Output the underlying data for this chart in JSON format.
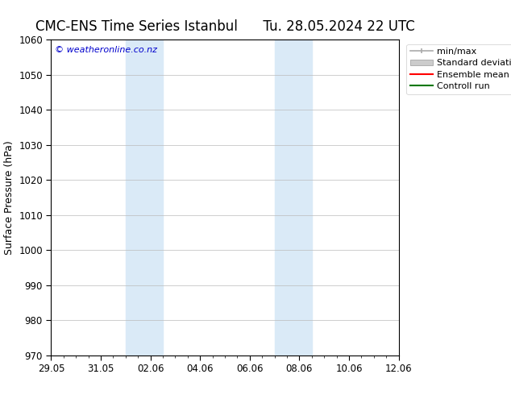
{
  "title_left": "CMC-ENS Time Series Istanbul",
  "title_right": "Tu. 28.05.2024 22 UTC",
  "ylabel": "Surface Pressure (hPa)",
  "ylim": [
    970,
    1060
  ],
  "yticks": [
    970,
    980,
    990,
    1000,
    1010,
    1020,
    1030,
    1040,
    1050,
    1060
  ],
  "xtick_labels": [
    "29.05",
    "31.05",
    "02.06",
    "04.06",
    "06.06",
    "08.06",
    "10.06",
    "12.06"
  ],
  "xtick_positions": [
    0,
    2,
    4,
    6,
    8,
    10,
    12,
    14
  ],
  "xlim": [
    0,
    14
  ],
  "watermark": "© weatheronline.co.nz",
  "watermark_color": "#0000cc",
  "shaded_regions": [
    {
      "x_start": 3.0,
      "x_end": 4.5
    },
    {
      "x_start": 9.0,
      "x_end": 10.5
    }
  ],
  "shaded_color": "#daeaf7",
  "background_color": "#ffffff",
  "grid_color": "#bbbbbb",
  "legend_items": [
    {
      "label": "min/max",
      "color": "#aaaaaa",
      "style": "line_with_caps"
    },
    {
      "label": "Standard deviation",
      "color": "#cccccc",
      "style": "filled"
    },
    {
      "label": "Ensemble mean run",
      "color": "#ff0000",
      "style": "line"
    },
    {
      "label": "Controll run",
      "color": "#007700",
      "style": "line"
    }
  ],
  "title_fontsize": 12,
  "tick_fontsize": 8.5,
  "legend_fontsize": 8,
  "ylabel_fontsize": 9,
  "watermark_fontsize": 8
}
